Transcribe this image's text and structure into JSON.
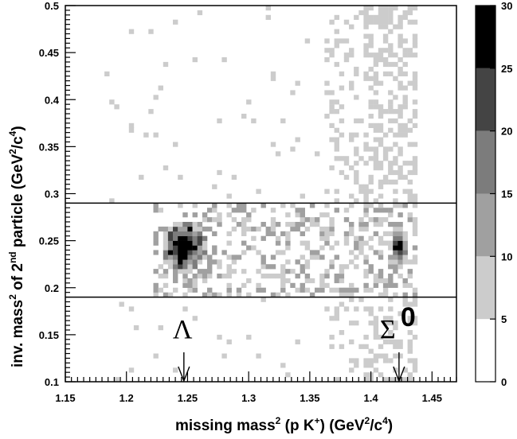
{
  "chart_data": {
    "type": "heatmap",
    "xlabel": {
      "parts": [
        "missing mass",
        "2",
        " (p K",
        "+",
        ") (GeV",
        "2",
        "/c",
        "4",
        ")"
      ]
    },
    "ylabel": {
      "parts": [
        "inv. mass",
        "2",
        " of 2",
        "nd",
        " particle (GeV",
        "2",
        "/c",
        "4",
        ")"
      ]
    },
    "xlim": [
      1.15,
      1.47
    ],
    "ylim": [
      0.1,
      0.5
    ],
    "x_ticks": [
      "1.15",
      "1.2",
      "1.25",
      "1.3",
      "1.35",
      "1.4",
      "1.45"
    ],
    "y_ticks": [
      "0.1",
      "0.15",
      "0.2",
      "0.25",
      "0.3",
      "0.35",
      "0.4",
      "0.45",
      "0.5"
    ],
    "colorbar": {
      "ticks": [
        "0",
        "5",
        "10",
        "15",
        "20",
        "25",
        "30"
      ],
      "levels": [
        {
          "from": 0,
          "to": 5,
          "color": "#ffffff"
        },
        {
          "from": 5,
          "to": 10,
          "color": "#cccccc"
        },
        {
          "from": 10,
          "to": 15,
          "color": "#a0a0a0"
        },
        {
          "from": 15,
          "to": 20,
          "color": "#7c7c7c"
        },
        {
          "from": 20,
          "to": 25,
          "color": "#444444"
        },
        {
          "from": 25,
          "to": 30,
          "color": "#000000"
        }
      ]
    },
    "cut_lines": [
      0.19,
      0.29
    ],
    "annotations": [
      {
        "symbol": "Λ",
        "superscript": "",
        "arrow_x": 1.247
      },
      {
        "symbol": "Σ",
        "superscript": "0",
        "arrow_x": 1.423
      }
    ],
    "bin_size": {
      "x": 0.004,
      "y": 0.005
    },
    "peaks": [
      {
        "x": 1.247,
        "y": 0.244,
        "sx": 0.01,
        "sy": 0.015,
        "amp": 30
      },
      {
        "x": 1.423,
        "y": 0.244,
        "sx": 0.004,
        "sy": 0.013,
        "amp": 25
      }
    ]
  }
}
